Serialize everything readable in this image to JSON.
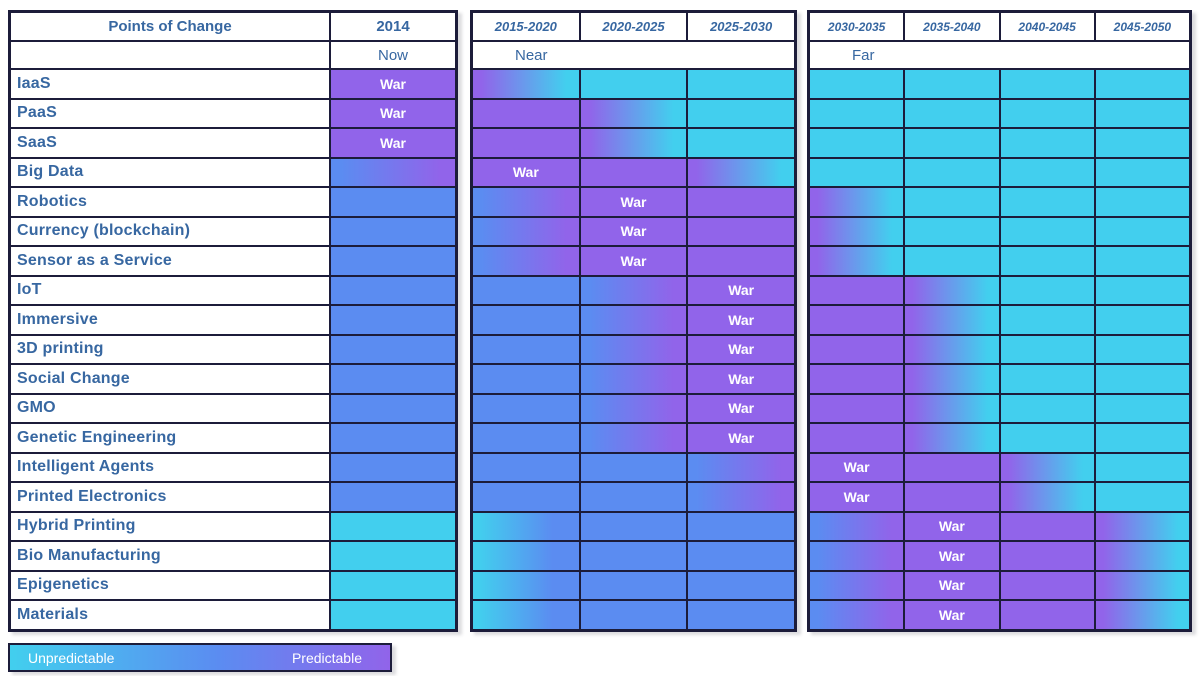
{
  "chart_data": {
    "type": "heatmap",
    "title": "Points of Change",
    "columns": [
      "2014",
      "2015-2020",
      "2020-2025",
      "2025-2030",
      "2030-2035",
      "2035-2040",
      "2040-2045",
      "2045-2050"
    ],
    "column_groups": [
      {
        "label": "Now",
        "columns": 1
      },
      {
        "label": "Near",
        "columns": 3
      },
      {
        "label": "Far",
        "columns": 4
      }
    ],
    "war_label": "War",
    "legend": {
      "low": "Unpredictable",
      "high": "Predictable"
    },
    "cell_states": {
      "c": "cyan - unpredictable",
      "b": "blue - mid predictability",
      "p": "purple - predictable",
      "pc": "gradient purple to cyan",
      "bp": "gradient blue to purple",
      "cb": "gradient cyan to blue",
      "war": "war point (solid purple with label)"
    },
    "colors": {
      "cyan": "#42cfee",
      "blue": "#5b8cf1",
      "purple": "#9164ea",
      "border": "#1c1c3a",
      "text_blue": "#3767a1"
    },
    "rows": [
      {
        "label": "IaaS",
        "war_period": "2014",
        "cells": [
          "war",
          "pc",
          "c",
          "c",
          "c",
          "c",
          "c",
          "c"
        ]
      },
      {
        "label": "PaaS",
        "war_period": "2014",
        "cells": [
          "war",
          "p",
          "pc",
          "c",
          "c",
          "c",
          "c",
          "c"
        ]
      },
      {
        "label": "SaaS",
        "war_period": "2014",
        "cells": [
          "war",
          "p",
          "pc",
          "c",
          "c",
          "c",
          "c",
          "c"
        ]
      },
      {
        "label": "Big Data",
        "war_period": "2015-2020",
        "cells": [
          "bp",
          "war",
          "p",
          "pc",
          "c",
          "c",
          "c",
          "c"
        ]
      },
      {
        "label": "Robotics",
        "war_period": "2020-2025",
        "cells": [
          "b",
          "bp",
          "war",
          "p",
          "pc",
          "c",
          "c",
          "c"
        ]
      },
      {
        "label": "Currency (blockchain)",
        "war_period": "2020-2025",
        "cells": [
          "b",
          "bp",
          "war",
          "p",
          "pc",
          "c",
          "c",
          "c"
        ]
      },
      {
        "label": "Sensor as a Service",
        "war_period": "2020-2025",
        "cells": [
          "b",
          "bp",
          "war",
          "p",
          "pc",
          "c",
          "c",
          "c"
        ]
      },
      {
        "label": "IoT",
        "war_period": "2025-2030",
        "cells": [
          "b",
          "b",
          "bp",
          "war",
          "p",
          "pc",
          "c",
          "c"
        ]
      },
      {
        "label": "Immersive",
        "war_period": "2025-2030",
        "cells": [
          "b",
          "b",
          "bp",
          "war",
          "p",
          "pc",
          "c",
          "c"
        ]
      },
      {
        "label": "3D printing",
        "war_period": "2025-2030",
        "cells": [
          "b",
          "b",
          "bp",
          "war",
          "p",
          "pc",
          "c",
          "c"
        ]
      },
      {
        "label": "Social Change",
        "war_period": "2025-2030",
        "cells": [
          "b",
          "b",
          "bp",
          "war",
          "p",
          "pc",
          "c",
          "c"
        ]
      },
      {
        "label": "GMO",
        "war_period": "2025-2030",
        "cells": [
          "b",
          "b",
          "bp",
          "war",
          "p",
          "pc",
          "c",
          "c"
        ]
      },
      {
        "label": "Genetic Engineering",
        "war_period": "2025-2030",
        "cells": [
          "b",
          "b",
          "bp",
          "war",
          "p",
          "pc",
          "c",
          "c"
        ]
      },
      {
        "label": "Intelligent Agents",
        "war_period": "2030-2035",
        "cells": [
          "b",
          "b",
          "b",
          "bp",
          "war",
          "p",
          "pc",
          "c"
        ]
      },
      {
        "label": "Printed Electronics",
        "war_period": "2030-2035",
        "cells": [
          "b",
          "b",
          "b",
          "bp",
          "war",
          "p",
          "pc",
          "c"
        ]
      },
      {
        "label": "Hybrid Printing",
        "war_period": "2035-2040",
        "cells": [
          "c",
          "cb",
          "b",
          "b",
          "bp",
          "war",
          "p",
          "pc"
        ]
      },
      {
        "label": "Bio Manufacturing",
        "war_period": "2035-2040",
        "cells": [
          "c",
          "cb",
          "b",
          "b",
          "bp",
          "war",
          "p",
          "pc"
        ]
      },
      {
        "label": "Epigenetics",
        "war_period": "2035-2040",
        "cells": [
          "c",
          "cb",
          "b",
          "b",
          "bp",
          "war",
          "p",
          "pc"
        ]
      },
      {
        "label": "Materials",
        "war_period": "2035-2040",
        "cells": [
          "c",
          "cb",
          "b",
          "b",
          "bp",
          "war",
          "p",
          "pc"
        ]
      }
    ]
  }
}
